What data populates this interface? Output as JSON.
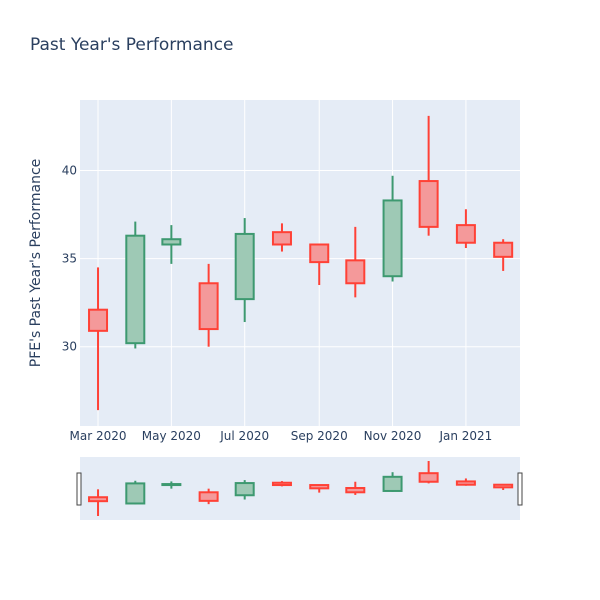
{
  "chart_data": {
    "type": "candlestick",
    "title": "Past Year's Performance",
    "xlabel": "",
    "ylabel": "PFE's Past Year's Performance",
    "y_ticks": [
      30,
      35,
      40
    ],
    "ylim": [
      25.5,
      44
    ],
    "x_ticks": [
      {
        "label": "Mar 2020",
        "date": "2020-03-01"
      },
      {
        "label": "May 2020",
        "date": "2020-05-01"
      },
      {
        "label": "Jul 2020",
        "date": "2020-07-01"
      },
      {
        "label": "Sep 2020",
        "date": "2020-09-01"
      },
      {
        "label": "Nov 2020",
        "date": "2020-11-01"
      },
      {
        "label": "Jan 2021",
        "date": "2021-01-01"
      }
    ],
    "xlim": [
      "2020-02-15",
      "2021-02-15"
    ],
    "candles": [
      {
        "date": "2020-03-01",
        "open": 32.1,
        "high": 34.5,
        "low": 26.4,
        "close": 30.9
      },
      {
        "date": "2020-04-01",
        "open": 30.2,
        "high": 37.1,
        "low": 29.9,
        "close": 36.3
      },
      {
        "date": "2020-05-01",
        "open": 35.8,
        "high": 36.9,
        "low": 34.7,
        "close": 36.1
      },
      {
        "date": "2020-06-01",
        "open": 33.6,
        "high": 34.7,
        "low": 30.0,
        "close": 31.0
      },
      {
        "date": "2020-07-01",
        "open": 32.7,
        "high": 37.3,
        "low": 31.4,
        "close": 36.4
      },
      {
        "date": "2020-08-01",
        "open": 36.5,
        "high": 37.0,
        "low": 35.4,
        "close": 35.8
      },
      {
        "date": "2020-09-01",
        "open": 35.8,
        "high": 35.8,
        "low": 33.5,
        "close": 34.8
      },
      {
        "date": "2020-10-01",
        "open": 34.9,
        "high": 36.8,
        "low": 32.8,
        "close": 33.6
      },
      {
        "date": "2020-11-01",
        "open": 34.0,
        "high": 39.7,
        "low": 33.7,
        "close": 38.3
      },
      {
        "date": "2020-12-01",
        "open": 39.4,
        "high": 43.1,
        "low": 36.3,
        "close": 36.8
      },
      {
        "date": "2021-01-01",
        "open": 36.9,
        "high": 37.8,
        "low": 35.6,
        "close": 35.9
      },
      {
        "date": "2021-02-01",
        "open": 35.9,
        "high": 36.1,
        "low": 34.3,
        "close": 35.1
      }
    ],
    "colors": {
      "increasing_line": "#3d9970",
      "increasing_fill": "#9ec9b5",
      "decreasing_line": "#ff4136",
      "decreasing_fill": "#f4999a",
      "plot_bg": "#e5ecf6"
    },
    "grid": true,
    "rangeslider": true
  }
}
